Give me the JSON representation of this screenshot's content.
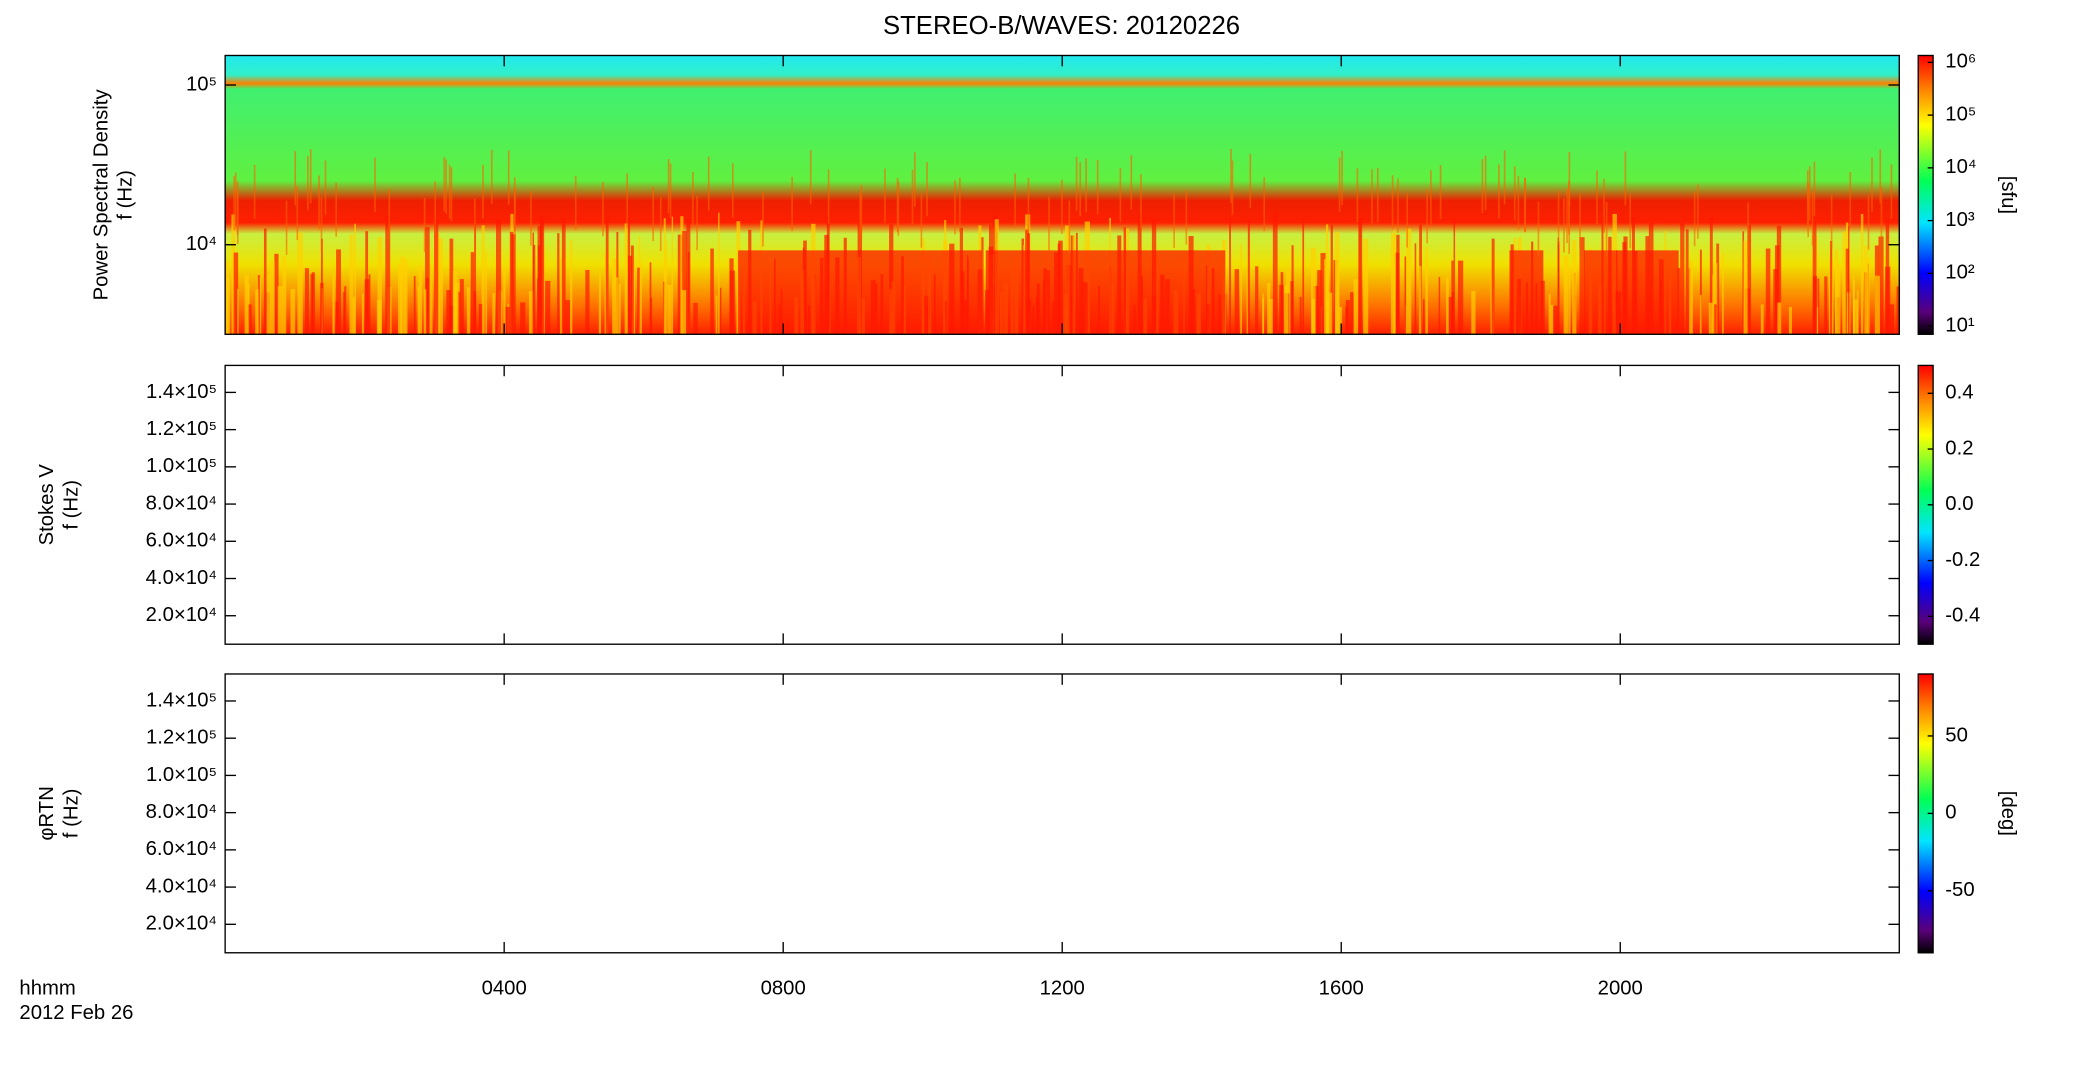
{
  "chart_data": [
    {
      "type": "heatmap",
      "title": "STEREO-B/WAVES: 20120226",
      "ylabel": [
        "Power Spectral Density",
        "f (Hz)"
      ],
      "yscale": "log",
      "ylim": [
        2750,
        153000
      ],
      "yticks": [
        {
          "value": 10000,
          "label": "10⁴"
        },
        {
          "value": 100000,
          "label": "10⁵"
        }
      ],
      "xlim": [
        0,
        24
      ],
      "xticks": [
        {
          "value": 4,
          "label": "0400"
        },
        {
          "value": 8,
          "label": "0800"
        },
        {
          "value": 12,
          "label": "1200"
        },
        {
          "value": 16,
          "label": "1600"
        },
        {
          "value": 20,
          "label": "2000"
        }
      ],
      "colorbar": {
        "scale": "log",
        "lim": [
          7,
          1350000
        ],
        "label": "[sfu]",
        "ticks": [
          {
            "value": 10,
            "label": "10¹"
          },
          {
            "value": 100,
            "label": "10²"
          },
          {
            "value": 1000,
            "label": "10³"
          },
          {
            "value": 10000,
            "label": "10⁴"
          },
          {
            "value": 100000,
            "label": "10⁵"
          },
          {
            "value": 1000000,
            "label": "10⁶"
          }
        ]
      }
    },
    {
      "type": "heatmap",
      "ylabel": [
        "Stokes V",
        "f (Hz)"
      ],
      "yscale": "linear",
      "ylim": [
        4700,
        154500
      ],
      "yticks": [
        {
          "value": 20000,
          "label": "2.0×10⁴"
        },
        {
          "value": 40000,
          "label": "4.0×10⁴"
        },
        {
          "value": 60000,
          "label": "6.0×10⁴"
        },
        {
          "value": 80000,
          "label": "8.0×10⁴"
        },
        {
          "value": 100000,
          "label": "1.0×10⁵"
        },
        {
          "value": 120000,
          "label": "1.2×10⁵"
        },
        {
          "value": 140000,
          "label": "1.4×10⁵"
        }
      ],
      "xlim": [
        0,
        24
      ],
      "xticks": [
        {
          "value": 4,
          "label": "0400"
        },
        {
          "value": 8,
          "label": "0800"
        },
        {
          "value": 12,
          "label": "1200"
        },
        {
          "value": 16,
          "label": "1600"
        },
        {
          "value": 20,
          "label": "2000"
        }
      ],
      "colorbar": {
        "scale": "linear",
        "lim": [
          -0.5,
          0.5
        ],
        "ticks": [
          -0.4,
          -0.2,
          {
            "value": 0,
            "label": "0.0"
          },
          0.2,
          0.4
        ]
      }
    },
    {
      "type": "heatmap",
      "ylabel": [
        "φRTN",
        "f (Hz)"
      ],
      "yscale": "linear",
      "ylim": [
        4700,
        154500
      ],
      "yticks": [
        {
          "value": 20000,
          "label": "2.0×10⁴"
        },
        {
          "value": 40000,
          "label": "4.0×10⁴"
        },
        {
          "value": 60000,
          "label": "6.0×10⁴"
        },
        {
          "value": 80000,
          "label": "8.0×10⁴"
        },
        {
          "value": 100000,
          "label": "1.0×10⁵"
        },
        {
          "value": 120000,
          "label": "1.2×10⁵"
        },
        {
          "value": 140000,
          "label": "1.4×10⁵"
        }
      ],
      "xlim": [
        0,
        24
      ],
      "xticks": [
        {
          "value": 4,
          "label": "0400"
        },
        {
          "value": 8,
          "label": "0800"
        },
        {
          "value": 12,
          "label": "1200"
        },
        {
          "value": 16,
          "label": "1600"
        },
        {
          "value": 20,
          "label": "2000"
        }
      ],
      "xlabel": [
        "hhmm",
        "2012 Feb 26"
      ],
      "colorbar": {
        "scale": "linear",
        "lim": [
          -90,
          90
        ],
        "label": "[deg]",
        "ticks": [
          -50,
          0,
          50
        ]
      }
    }
  ]
}
